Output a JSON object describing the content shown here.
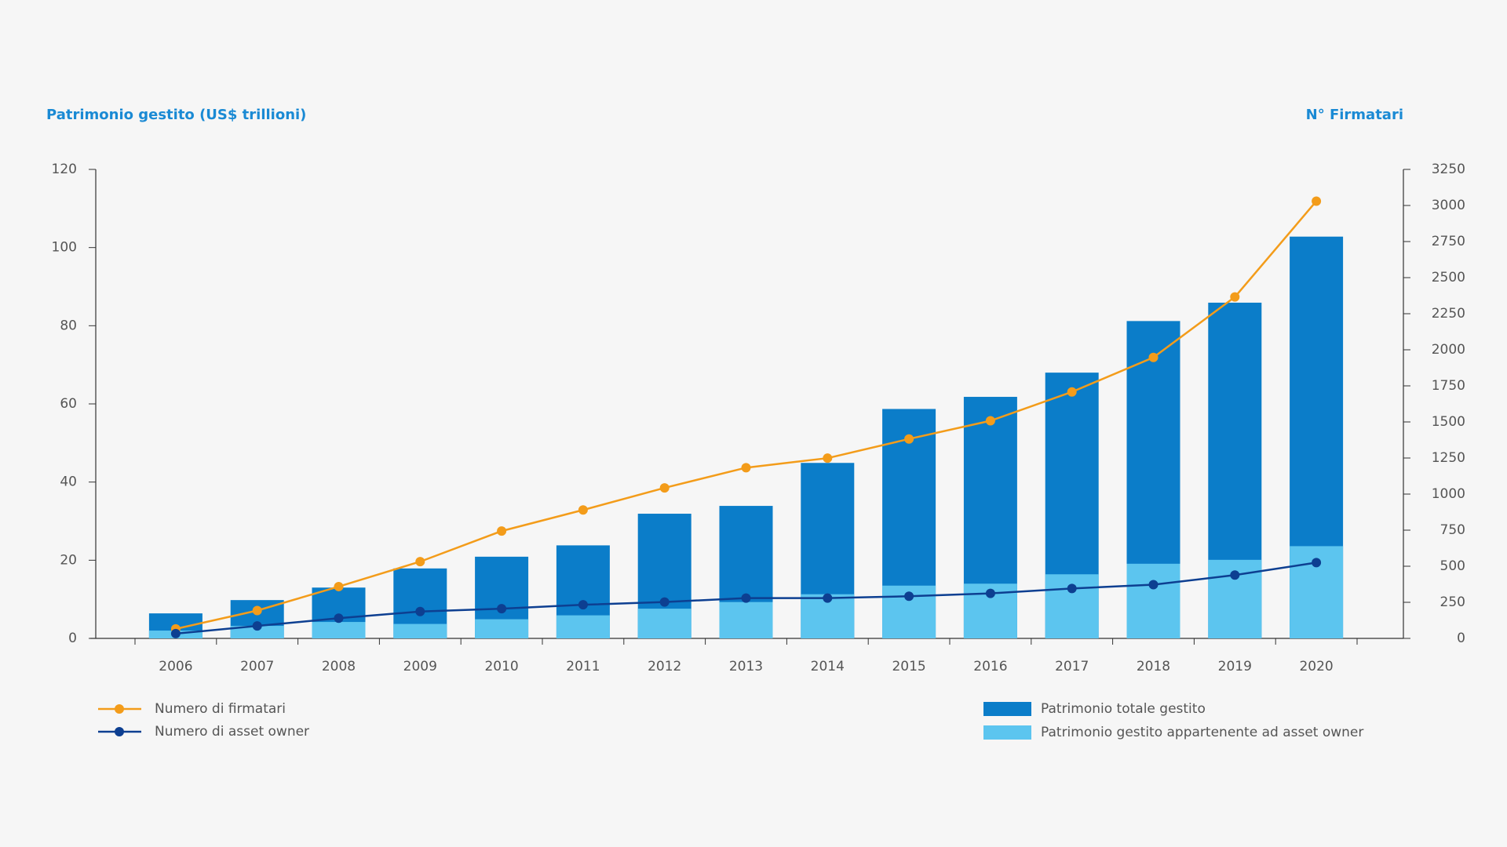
{
  "chart_data": {
    "type": "bar",
    "y_label": "Patrimonio gestito (US$ trillioni)",
    "y2_label": "N° Firmatari",
    "categories": [
      "2006",
      "2007",
      "2008",
      "2009",
      "2010",
      "2011",
      "2012",
      "2013",
      "2014",
      "2015",
      "2016",
      "2017",
      "2018",
      "2019",
      "2020"
    ],
    "series": [
      {
        "name": "Patrimonio totale gestito",
        "type": "bar",
        "color": "#0b7dc9",
        "values": [
          6.4,
          9.8,
          13,
          17.9,
          20.9,
          23.8,
          31.9,
          33.9,
          44.9,
          58.7,
          61.8,
          68,
          81.2,
          85.9,
          102.8
        ]
      },
      {
        "name": "Patrimonio gestito appartenente ad asset owner",
        "type": "bar",
        "color": "#5cc5ef",
        "values": [
          2,
          3.2,
          4.2,
          3.7,
          4.9,
          5.9,
          7.6,
          9.3,
          11.3,
          13.5,
          14,
          16.4,
          19.1,
          20.1,
          23.6
        ]
      },
      {
        "name": "Numero di firmatari",
        "type": "line",
        "axis": "y2",
        "color": "#f39c1a",
        "values": [
          66,
          193,
          359,
          532,
          744,
          890,
          1043,
          1183,
          1249,
          1382,
          1508,
          1708,
          1947,
          2366,
          3030
        ]
      },
      {
        "name": "Numero di asset owner",
        "type": "line",
        "axis": "y2",
        "color": "#0d3f91",
        "values": [
          33,
          86,
          140,
          186,
          206,
          233,
          252,
          279,
          279,
          292,
          312,
          346,
          372,
          439,
          525
        ]
      }
    ],
    "ylim": [
      0,
      120
    ],
    "yticks": [
      0,
      20,
      40,
      60,
      80,
      100,
      120
    ],
    "y2lim": [
      0,
      3250
    ],
    "y2ticks": [
      0,
      250,
      500,
      750,
      1000,
      1250,
      1500,
      1750,
      2000,
      2250,
      2500,
      2750,
      3000,
      3250
    ]
  }
}
